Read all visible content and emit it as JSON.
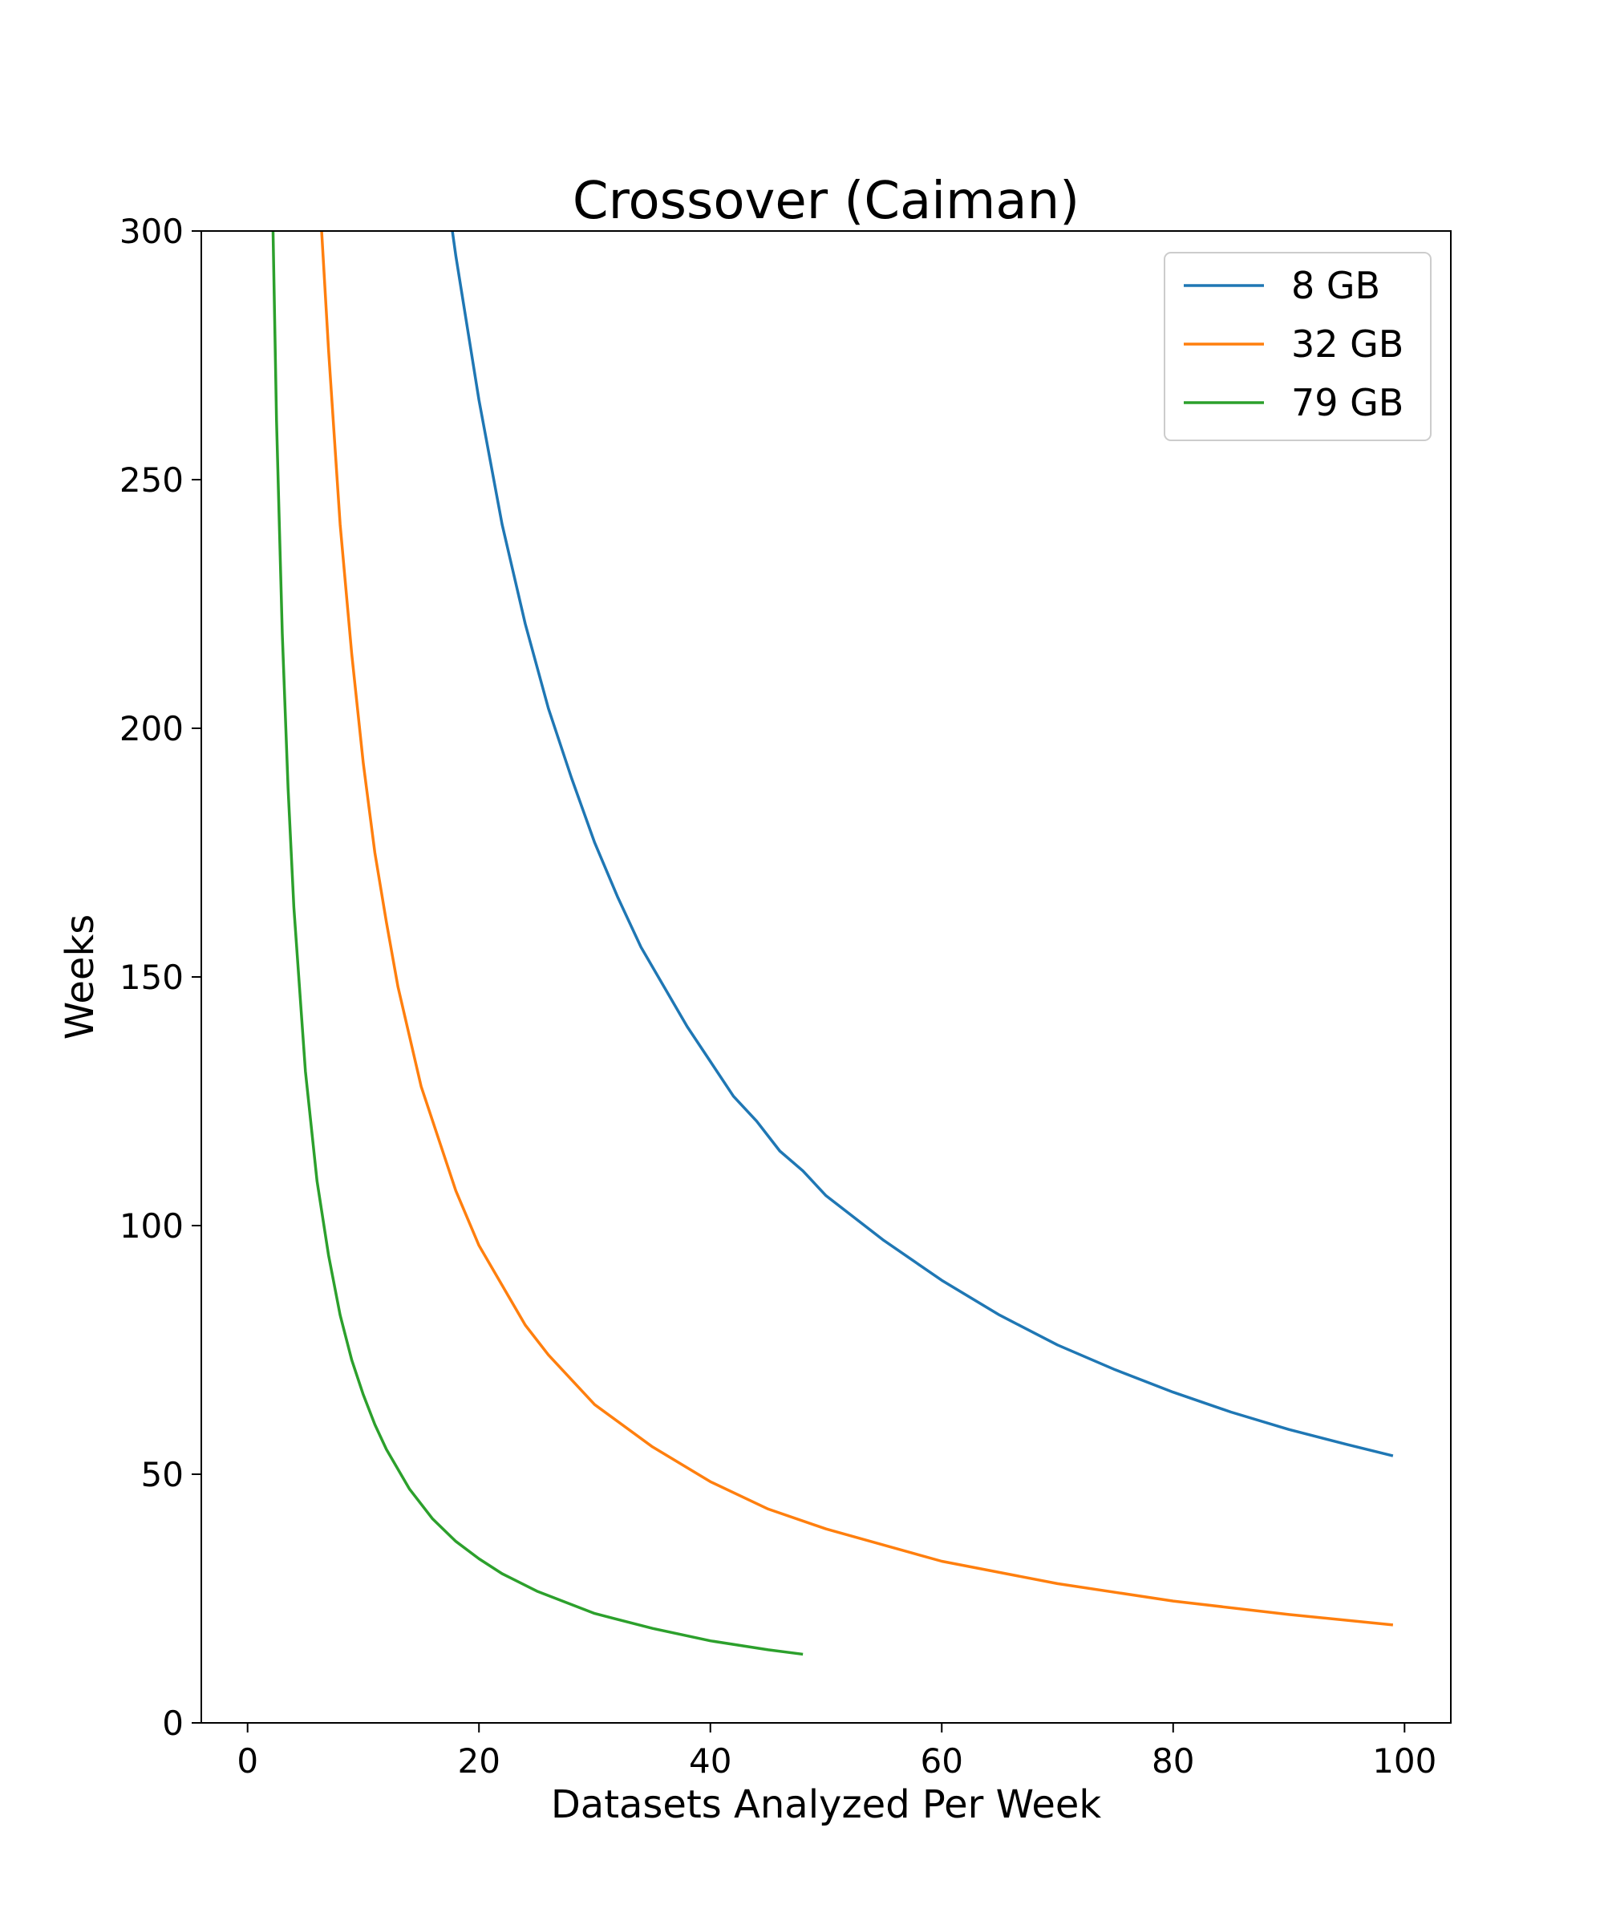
{
  "chart_data": {
    "type": "line",
    "title": "Crossover (Caiman)",
    "xlabel": "Datasets Analyzed Per Week",
    "ylabel": "Weeks",
    "xlim": [
      -4,
      104
    ],
    "ylim": [
      0,
      300
    ],
    "xticks": [
      0,
      20,
      40,
      60,
      80,
      100
    ],
    "yticks": [
      0,
      50,
      100,
      150,
      200,
      250,
      300
    ],
    "grid": false,
    "legend_position": "top-right",
    "series": [
      {
        "name": "8 GB",
        "color": "#1f77b4",
        "x": [
          17.7,
          18,
          20,
          22,
          24,
          26,
          28,
          30,
          32,
          34,
          36,
          38,
          40,
          42,
          44,
          46,
          48,
          50,
          55,
          60,
          65,
          70,
          75,
          80,
          85,
          90,
          95,
          99
        ],
        "y": [
          300,
          295,
          266,
          241,
          221,
          204,
          190,
          177,
          166,
          156,
          148,
          140,
          133,
          126,
          121,
          115,
          111,
          106,
          97,
          89,
          82,
          76,
          71,
          66.5,
          62.5,
          59,
          56,
          53.7
        ]
      },
      {
        "name": "32 GB",
        "color": "#ff7f0e",
        "x": [
          6.4,
          7,
          8,
          9,
          10,
          11,
          12,
          13,
          14,
          15,
          16,
          18,
          20,
          22,
          24,
          26,
          28,
          30,
          35,
          40,
          45,
          50,
          60,
          70,
          80,
          90,
          99
        ],
        "y": [
          300,
          276,
          241,
          215,
          193,
          175,
          161,
          148,
          138,
          128,
          121,
          107,
          96,
          88,
          80,
          74,
          69,
          64,
          55.5,
          48.5,
          43,
          39,
          32.5,
          28,
          24.5,
          21.8,
          19.7
        ]
      },
      {
        "name": "79 GB",
        "color": "#2ca02c",
        "x": [
          2.2,
          2.5,
          3,
          3.5,
          4,
          5,
          6,
          7,
          8,
          9,
          10,
          11,
          12,
          14,
          16,
          18,
          20,
          22,
          25,
          30,
          35,
          40,
          45,
          48
        ],
        "y": [
          300,
          262,
          219,
          188,
          164,
          131,
          109,
          94,
          82,
          73,
          66,
          60,
          55,
          47,
          41,
          36.5,
          33,
          30,
          26.5,
          22,
          19,
          16.5,
          14.7,
          13.8
        ]
      }
    ]
  }
}
